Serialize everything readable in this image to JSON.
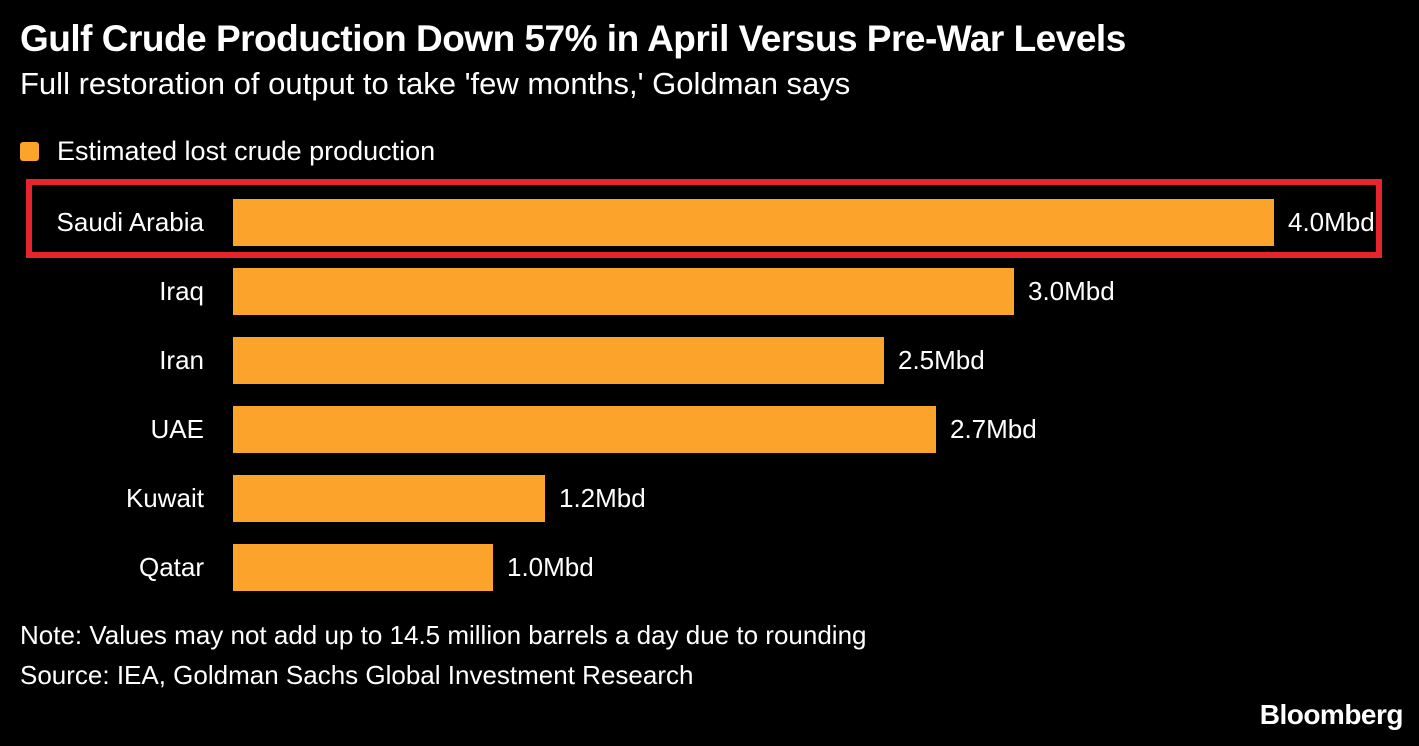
{
  "header": {
    "title": "Gulf Crude Production Down 57% in April Versus Pre-War Levels",
    "subtitle": "Full restoration of output to take 'few months,' Goldman says"
  },
  "legend": {
    "label": "Estimated lost crude production"
  },
  "chart_data": {
    "type": "bar",
    "orientation": "horizontal",
    "title": "Gulf Crude Production Down 57% in April Versus Pre-War Levels",
    "subtitle": "Full restoration of output to take 'few months,' Goldman says",
    "legend_entries": [
      "Estimated lost crude production"
    ],
    "categories": [
      "Saudi Arabia",
      "Iraq",
      "Iran",
      "UAE",
      "Kuwait",
      "Qatar"
    ],
    "values": [
      4.0,
      3.0,
      2.5,
      2.7,
      1.2,
      1.0
    ],
    "value_labels": [
      "4.0Mbd",
      "3.0Mbd",
      "2.5Mbd",
      "2.7Mbd",
      "1.2Mbd",
      "1.0Mbd"
    ],
    "unit": "Mbd",
    "xlim": [
      0,
      4.0
    ],
    "grid": false,
    "legend_position": "top-left",
    "bar_color": "#fca32b",
    "background_color": "#000000",
    "text_color": "#ffffff",
    "highlight": {
      "category": "Saudi Arabia",
      "shape": "red-box-annotation",
      "color": "#e6242c"
    }
  },
  "footer": {
    "note": "Note: Values may not add up to 14.5 million barrels a day due to rounding",
    "source": "Source: IEA, Goldman Sachs Global Investment Research",
    "brand": "Bloomberg"
  }
}
